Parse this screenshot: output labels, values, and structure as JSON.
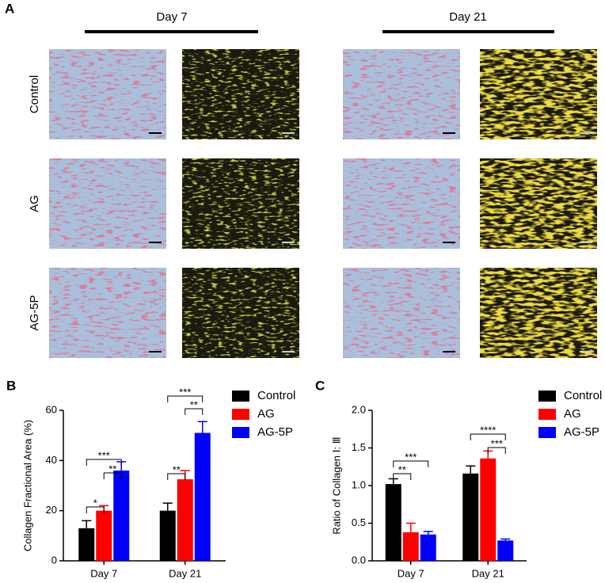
{
  "panel_a": {
    "label": "A",
    "columns": [
      "Day 7",
      "Day 21"
    ],
    "rows": [
      "Control",
      "AG",
      "AG-5P"
    ]
  },
  "chart_data": [
    {
      "type": "bar",
      "label": "B",
      "ylabel": "Collagen Fractional Area (%)",
      "categories": [
        "Day 7",
        "Day 21"
      ],
      "series": [
        {
          "name": "Control",
          "color": "#000000",
          "values": [
            13,
            20
          ],
          "errors": [
            3,
            3
          ]
        },
        {
          "name": "AG",
          "color": "#ff0000",
          "values": [
            20,
            32.5
          ],
          "errors": [
            2,
            3.5
          ]
        },
        {
          "name": "AG-5P",
          "color": "#0000ff",
          "values": [
            36,
            51
          ],
          "errors": [
            3.5,
            4.5
          ]
        }
      ],
      "ylim": [
        0,
        60
      ],
      "yticks": [
        0,
        20,
        40,
        60
      ],
      "annotations": [
        "*",
        "**",
        "***",
        "**",
        "**",
        "***"
      ]
    },
    {
      "type": "bar",
      "label": "C",
      "ylabel": "Ratio of Collagen Ⅰ: Ⅲ",
      "categories": [
        "Day 7",
        "Day 21"
      ],
      "series": [
        {
          "name": "Control",
          "color": "#000000",
          "values": [
            1.02,
            1.16
          ],
          "errors": [
            0.07,
            0.1
          ]
        },
        {
          "name": "AG",
          "color": "#ff0000",
          "values": [
            0.38,
            1.36
          ],
          "errors": [
            0.12,
            0.1
          ]
        },
        {
          "name": "AG-5P",
          "color": "#0000ff",
          "values": [
            0.35,
            0.27
          ],
          "errors": [
            0.04,
            0.02
          ]
        }
      ],
      "ylim": [
        0,
        2
      ],
      "yticks": [
        {
          "value": 0,
          "label": "0.0"
        },
        {
          "value": 0.5,
          "label": "0.5"
        },
        {
          "value": 1,
          "label": "1.0"
        },
        {
          "value": 1.5,
          "label": "1.5"
        },
        {
          "value": 2,
          "label": "2.0"
        }
      ],
      "annotations": [
        "**",
        "***",
        "****",
        "***"
      ]
    }
  ]
}
